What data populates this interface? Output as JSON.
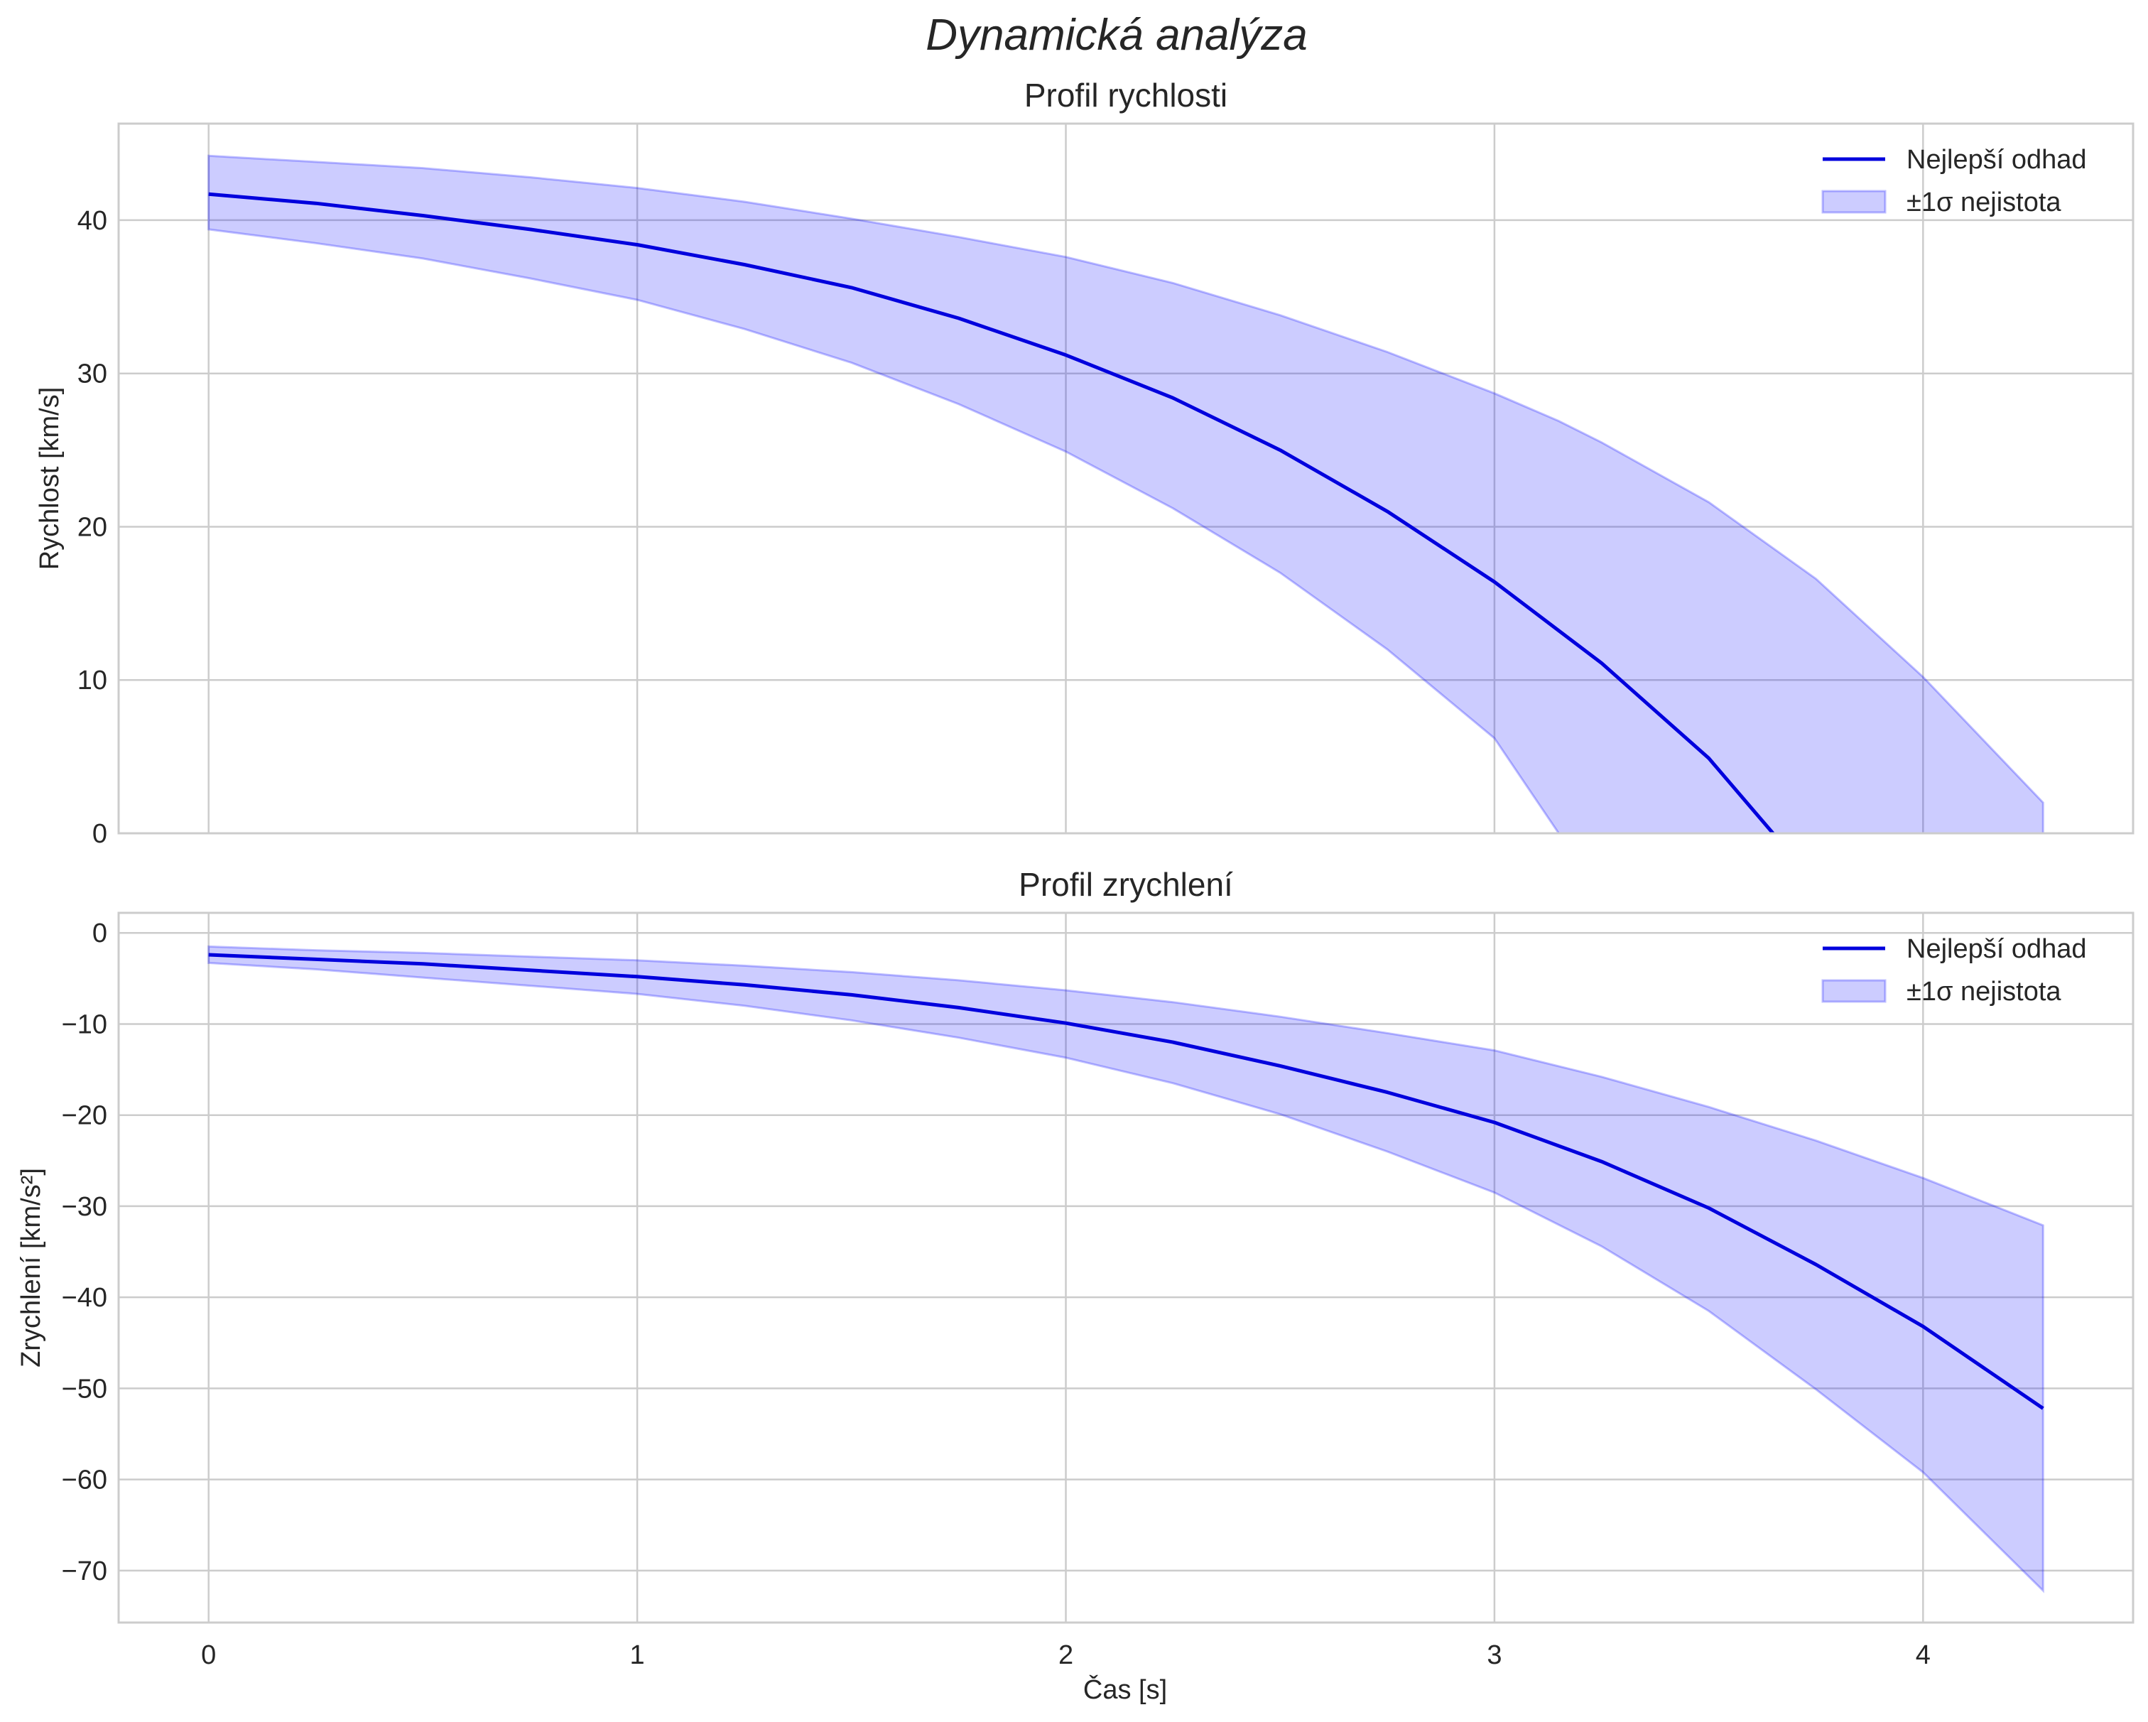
{
  "figure": {
    "title": "Dynamická analýza",
    "xlabel": "Čas [s]"
  },
  "chart_data": [
    {
      "type": "line",
      "title": "Profil rychlosti",
      "xlabel": "",
      "ylabel": "Rychlost [km/s]",
      "xlim": [
        -0.21,
        4.49
      ],
      "ylim": [
        0,
        46.3
      ],
      "xticks": [
        0,
        1,
        2,
        3,
        4
      ],
      "yticks": [
        0,
        10,
        20,
        30,
        40
      ],
      "grid": true,
      "legend_position": "top-right",
      "series": [
        {
          "name": "Nejlepší odhad",
          "kind": "line",
          "color": "#0000dd",
          "x": [
            0,
            0.25,
            0.5,
            0.75,
            1.0,
            1.25,
            1.5,
            1.75,
            2.0,
            2.25,
            2.5,
            2.75,
            3.0,
            3.25,
            3.5,
            3.65
          ],
          "y": [
            41.7,
            41.1,
            40.3,
            39.4,
            38.4,
            37.1,
            35.6,
            33.6,
            31.2,
            28.4,
            25.0,
            21.0,
            16.4,
            11.1,
            4.9,
            0.0
          ]
        },
        {
          "name": "±1σ nejistota",
          "kind": "band",
          "color": "#0000ff",
          "opacity": 0.2,
          "x": [
            0,
            0.25,
            0.5,
            0.75,
            1.0,
            1.25,
            1.5,
            1.75,
            2.0,
            2.25,
            2.5,
            2.75,
            3.0,
            3.15,
            3.25,
            3.5,
            3.75,
            4.0,
            4.28
          ],
          "lower": [
            39.4,
            38.5,
            37.5,
            36.2,
            34.8,
            32.9,
            30.7,
            28.0,
            24.9,
            21.2,
            17.0,
            12.0,
            6.2,
            0.0,
            0.0,
            0.0,
            0.0,
            0.0,
            0.0
          ],
          "upper": [
            44.2,
            43.8,
            43.4,
            42.8,
            42.1,
            41.2,
            40.1,
            38.9,
            37.6,
            35.9,
            33.8,
            31.4,
            28.7,
            26.9,
            25.5,
            21.6,
            16.6,
            10.2,
            2.0
          ]
        }
      ]
    },
    {
      "type": "line",
      "title": "Profil zrychlení",
      "xlabel": "Čas [s]",
      "ylabel": "Zrychlení [km/s²]",
      "xlim": [
        -0.21,
        4.49
      ],
      "ylim": [
        -75.7,
        2.2
      ],
      "xticks": [
        0,
        1,
        2,
        3,
        4
      ],
      "yticks": [
        0,
        -10,
        -20,
        -30,
        -40,
        -50,
        -60,
        -70
      ],
      "grid": true,
      "legend_position": "top-right",
      "series": [
        {
          "name": "Nejlepší odhad",
          "kind": "line",
          "color": "#0000dd",
          "x": [
            0,
            0.25,
            0.5,
            0.75,
            1.0,
            1.25,
            1.5,
            1.75,
            2.0,
            2.25,
            2.5,
            2.75,
            3.0,
            3.25,
            3.5,
            3.75,
            4.0,
            4.28
          ],
          "y": [
            -2.4,
            -2.9,
            -3.4,
            -4.1,
            -4.8,
            -5.7,
            -6.8,
            -8.2,
            -9.9,
            -12.0,
            -14.6,
            -17.5,
            -20.8,
            -25.1,
            -30.2,
            -36.4,
            -43.2,
            -52.2
          ]
        },
        {
          "name": "±1σ nejistota",
          "kind": "band",
          "color": "#0000ff",
          "opacity": 0.2,
          "x": [
            0,
            0.25,
            0.5,
            0.75,
            1.0,
            1.25,
            1.5,
            1.75,
            2.0,
            2.25,
            2.5,
            2.75,
            3.0,
            3.25,
            3.5,
            3.75,
            4.0,
            4.28
          ],
          "lower": [
            -3.3,
            -4.0,
            -4.9,
            -5.8,
            -6.7,
            -8.0,
            -9.6,
            -11.5,
            -13.7,
            -16.5,
            -19.9,
            -24.0,
            -28.5,
            -34.4,
            -41.5,
            -50.1,
            -59.2,
            -72.2
          ],
          "upper": [
            -1.5,
            -1.9,
            -2.2,
            -2.6,
            -3.0,
            -3.6,
            -4.3,
            -5.2,
            -6.3,
            -7.6,
            -9.2,
            -11.0,
            -12.9,
            -15.8,
            -19.1,
            -22.8,
            -26.9,
            -32.1
          ]
        }
      ]
    }
  ]
}
